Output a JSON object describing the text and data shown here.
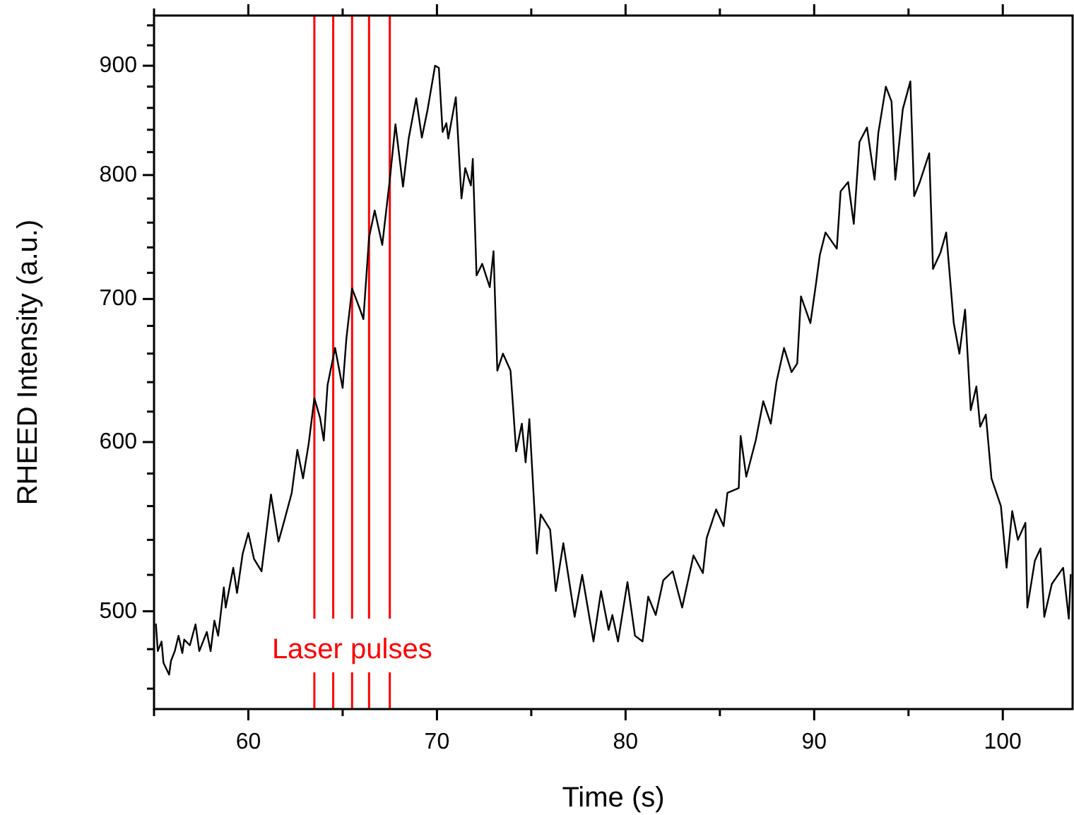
{
  "chart_data": {
    "type": "line",
    "xlabel": "Time (s)",
    "ylabel": "RHEED Intensity (a.u.)",
    "log": "y",
    "line_style": "solid",
    "marker": "none",
    "grid": false,
    "xlim": [
      55,
      103.7
    ],
    "ylim": [
      450,
      950
    ],
    "xticks": [
      {
        "value": 55,
        "label": null
      },
      60,
      {
        "value": 65,
        "label": null
      },
      70,
      {
        "value": 75,
        "label": null
      },
      80,
      {
        "value": 85,
        "label": null
      },
      90,
      {
        "value": 95,
        "label": null
      },
      100
    ],
    "yticks": [
      {
        "value": 460,
        "label": null
      },
      {
        "value": 480,
        "label": null
      },
      500,
      {
        "value": 520,
        "label": null
      },
      {
        "value": 540,
        "label": null
      },
      {
        "value": 560,
        "label": null
      },
      {
        "value": 580,
        "label": null
      },
      600,
      {
        "value": 620,
        "label": null
      },
      {
        "value": 640,
        "label": null
      },
      {
        "value": 660,
        "label": null
      },
      {
        "value": 680,
        "label": null
      },
      700,
      {
        "value": 720,
        "label": null
      },
      {
        "value": 740,
        "label": null
      },
      {
        "value": 760,
        "label": null
      },
      {
        "value": 780,
        "label": null
      },
      800,
      {
        "value": 820,
        "label": null
      },
      {
        "value": 840,
        "label": null
      },
      {
        "value": 860,
        "label": null
      },
      {
        "value": 880,
        "label": null
      },
      900,
      {
        "value": 920,
        "label": null
      },
      {
        "value": 940,
        "label": null
      }
    ],
    "series": [
      {
        "color": "#000000",
        "x": [
          55.1,
          55.2,
          55.4,
          55.5,
          55.8,
          55.9,
          56.1,
          56.3,
          56.5,
          56.6,
          56.9,
          57.2,
          57.4,
          57.8,
          58.0,
          58.2,
          58.4,
          58.7,
          58.8,
          59.2,
          59.4,
          59.7,
          60.0,
          60.3,
          60.7,
          61.2,
          61.6,
          61.9,
          62.3,
          62.6,
          62.9,
          63.2,
          63.5,
          63.8,
          64.0,
          64.2,
          64.6,
          65.0,
          65.2,
          65.5,
          65.9,
          66.1,
          66.4,
          66.7,
          67.1,
          67.5,
          67.8,
          68.2,
          68.5,
          68.9,
          69.2,
          69.5,
          69.9,
          70.1,
          70.3,
          70.5,
          70.6,
          71.0,
          71.3,
          71.5,
          71.8,
          71.9,
          72.1,
          72.4,
          72.8,
          73.0,
          73.2,
          73.5,
          73.9,
          74.2,
          74.5,
          74.7,
          74.9,
          75.3,
          75.5,
          76.0,
          76.3,
          76.7,
          77.3,
          77.7,
          78.3,
          78.7,
          79.1,
          79.3,
          79.6,
          80.1,
          80.5,
          80.9,
          81.2,
          81.6,
          82.0,
          82.5,
          83.0,
          83.6,
          84.1,
          84.3,
          84.8,
          85.2,
          85.4,
          86.0,
          86.1,
          86.4,
          86.9,
          87.3,
          87.7,
          88.0,
          88.4,
          88.8,
          89.1,
          89.3,
          89.8,
          90.1,
          90.3,
          90.6,
          91.2,
          91.4,
          91.8,
          92.1,
          92.4,
          92.8,
          93.2,
          93.4,
          93.8,
          94.1,
          94.3,
          94.7,
          95.1,
          95.3,
          95.6,
          96.1,
          96.3,
          96.7,
          97.0,
          97.4,
          97.7,
          98.0,
          98.3,
          98.6,
          98.8,
          99.1,
          99.4,
          99.9,
          100.2,
          100.5,
          100.8,
          101.2,
          101.3,
          101.7,
          102.0,
          102.2,
          102.6,
          103.2,
          103.5,
          103.6
        ],
        "values": [
          493,
          479,
          484,
          473,
          467,
          474,
          479,
          487,
          478,
          485,
          482,
          493,
          479,
          489,
          479,
          495,
          487,
          513,
          502,
          524,
          510,
          532,
          544,
          529,
          522,
          567,
          539,
          551,
          568,
          595,
          577,
          599,
          629,
          616,
          601,
          638,
          664,
          636,
          671,
          708,
          693,
          685,
          748,
          770,
          742,
          796,
          845,
          790,
          832,
          869,
          833,
          858,
          900,
          898,
          838,
          846,
          832,
          870,
          780,
          806,
          791,
          814,
          718,
          727,
          709,
          737,
          648,
          660,
          648,
          594,
          612,
          587,
          615,
          532,
          555,
          546,
          511,
          538,
          497,
          520,
          484,
          511,
          490,
          498,
          484,
          516,
          487,
          484,
          508,
          498,
          517,
          522,
          502,
          531,
          521,
          541,
          558,
          548,
          568,
          571,
          604,
          578,
          601,
          627,
          612,
          640,
          664,
          647,
          653,
          702,
          682,
          712,
          734,
          752,
          739,
          786,
          794,
          759,
          829,
          842,
          796,
          837,
          880,
          866,
          796,
          859,
          885,
          782,
          794,
          819,
          723,
          736,
          752,
          682,
          660,
          692,
          621,
          637,
          610,
          618,
          577,
          560,
          524,
          557,
          540,
          550,
          502,
          528,
          535,
          497,
          515,
          524,
          496,
          520
        ]
      }
    ],
    "ref_lines": [
      {
        "axis": "x",
        "value": 63.5,
        "color": "#ff0000"
      },
      {
        "axis": "x",
        "value": 64.5,
        "color": "#ff0000"
      },
      {
        "axis": "x",
        "value": 65.5,
        "color": "#ff0000"
      },
      {
        "axis": "x",
        "value": 66.4,
        "color": "#ff0000"
      },
      {
        "axis": "x",
        "value": 67.5,
        "color": "#ff0000"
      }
    ],
    "annotations": [
      "Laser pulses"
    ]
  }
}
